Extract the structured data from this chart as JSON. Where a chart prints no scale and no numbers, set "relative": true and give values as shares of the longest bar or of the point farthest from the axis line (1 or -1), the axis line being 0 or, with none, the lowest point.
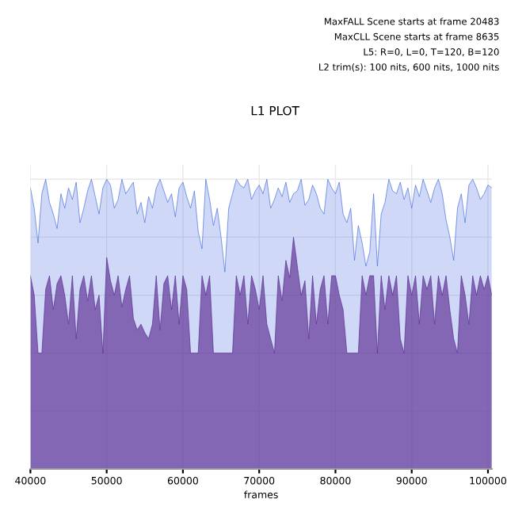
{
  "chart_data": {
    "type": "area",
    "title": "L1 PLOT",
    "xlabel": "frames",
    "annotations": [
      "MaxFALL Scene starts at frame 20483",
      "MaxCLL Scene starts at frame 8635",
      "L5: R=0, L=0, T=120, B=120",
      "L2 trim(s): 100 nits, 600 nits, 1000 nits"
    ],
    "relative": true,
    "grid": true,
    "legend": false,
    "xlim": [
      40000,
      100500
    ],
    "xticks": [
      40000,
      50000,
      60000,
      70000,
      80000,
      90000,
      100000
    ],
    "x": [
      40000,
      40500,
      41000,
      41500,
      42000,
      42500,
      43000,
      43500,
      44000,
      44500,
      45000,
      45500,
      46000,
      46500,
      47000,
      47500,
      48000,
      48500,
      49000,
      49500,
      50000,
      50500,
      51000,
      51500,
      52000,
      52500,
      53000,
      53500,
      54000,
      54500,
      55000,
      55500,
      56000,
      56500,
      57000,
      57500,
      58000,
      58500,
      59000,
      59500,
      60000,
      60500,
      61000,
      61500,
      62000,
      62500,
      63000,
      63500,
      64000,
      64500,
      65000,
      65500,
      66000,
      66500,
      67000,
      67500,
      68000,
      68500,
      69000,
      69500,
      70000,
      70500,
      71000,
      71500,
      72000,
      72500,
      73000,
      73500,
      74000,
      74500,
      75000,
      75500,
      76000,
      76500,
      77000,
      77500,
      78000,
      78500,
      79000,
      79500,
      80000,
      80500,
      81000,
      81500,
      82000,
      82500,
      83000,
      83500,
      84000,
      84500,
      85000,
      85500,
      86000,
      86500,
      87000,
      87500,
      88000,
      88500,
      89000,
      89500,
      90000,
      90500,
      91000,
      91500,
      92000,
      92500,
      93000,
      93500,
      94000,
      94500,
      95000,
      95500,
      96000,
      96500,
      97000,
      97500,
      98000,
      98500,
      99000,
      99500,
      100000,
      100500
    ],
    "series": [
      {
        "color": "#4169e1",
        "values": [
          0.97,
          0.9,
          0.78,
          0.95,
          1.0,
          0.92,
          0.88,
          0.83,
          0.95,
          0.9,
          0.97,
          0.93,
          0.99,
          0.85,
          0.9,
          0.96,
          1.0,
          0.94,
          0.88,
          0.97,
          1.0,
          0.98,
          0.9,
          0.93,
          1.0,
          0.95,
          0.97,
          0.99,
          0.88,
          0.92,
          0.85,
          0.94,
          0.9,
          0.97,
          1.0,
          0.96,
          0.92,
          0.95,
          0.87,
          0.97,
          0.99,
          0.94,
          0.9,
          0.96,
          0.82,
          0.76,
          1.0,
          0.93,
          0.84,
          0.9,
          0.8,
          0.68,
          0.9,
          0.95,
          1.0,
          0.98,
          0.97,
          1.0,
          0.93,
          0.96,
          0.98,
          0.95,
          1.0,
          0.9,
          0.93,
          0.97,
          0.94,
          0.99,
          0.92,
          0.95,
          0.96,
          1.0,
          0.91,
          0.93,
          0.98,
          0.95,
          0.9,
          0.88,
          1.0,
          0.97,
          0.95,
          0.99,
          0.88,
          0.85,
          0.9,
          0.72,
          0.84,
          0.78,
          0.7,
          0.75,
          0.95,
          0.7,
          0.88,
          0.92,
          1.0,
          0.96,
          0.95,
          0.99,
          0.93,
          0.97,
          0.9,
          0.98,
          0.94,
          1.0,
          0.96,
          0.92,
          0.97,
          1.0,
          0.95,
          0.86,
          0.8,
          0.72,
          0.9,
          0.95,
          0.85,
          0.98,
          1.0,
          0.97,
          0.93,
          0.95,
          0.98,
          0.97
        ]
      },
      {
        "color": "#5a2a91",
        "values": [
          0.667,
          0.6,
          0.4,
          0.4,
          0.62,
          0.667,
          0.55,
          0.64,
          0.667,
          0.6,
          0.5,
          0.667,
          0.45,
          0.62,
          0.667,
          0.58,
          0.667,
          0.55,
          0.6,
          0.4,
          0.73,
          0.65,
          0.6,
          0.667,
          0.56,
          0.62,
          0.667,
          0.52,
          0.48,
          0.5,
          0.47,
          0.45,
          0.5,
          0.667,
          0.48,
          0.64,
          0.667,
          0.55,
          0.667,
          0.5,
          0.667,
          0.62,
          0.4,
          0.4,
          0.4,
          0.667,
          0.6,
          0.667,
          0.4,
          0.4,
          0.4,
          0.4,
          0.4,
          0.4,
          0.667,
          0.6,
          0.667,
          0.5,
          0.667,
          0.62,
          0.55,
          0.667,
          0.5,
          0.45,
          0.4,
          0.667,
          0.58,
          0.72,
          0.66,
          0.8,
          0.7,
          0.6,
          0.65,
          0.45,
          0.667,
          0.5,
          0.62,
          0.667,
          0.5,
          0.667,
          0.667,
          0.6,
          0.55,
          0.4,
          0.4,
          0.4,
          0.4,
          0.667,
          0.6,
          0.667,
          0.667,
          0.4,
          0.667,
          0.55,
          0.667,
          0.6,
          0.667,
          0.45,
          0.4,
          0.667,
          0.6,
          0.667,
          0.5,
          0.667,
          0.62,
          0.667,
          0.5,
          0.667,
          0.6,
          0.667,
          0.55,
          0.45,
          0.4,
          0.667,
          0.6,
          0.5,
          0.667,
          0.6,
          0.667,
          0.62,
          0.667,
          0.6
        ]
      }
    ]
  }
}
